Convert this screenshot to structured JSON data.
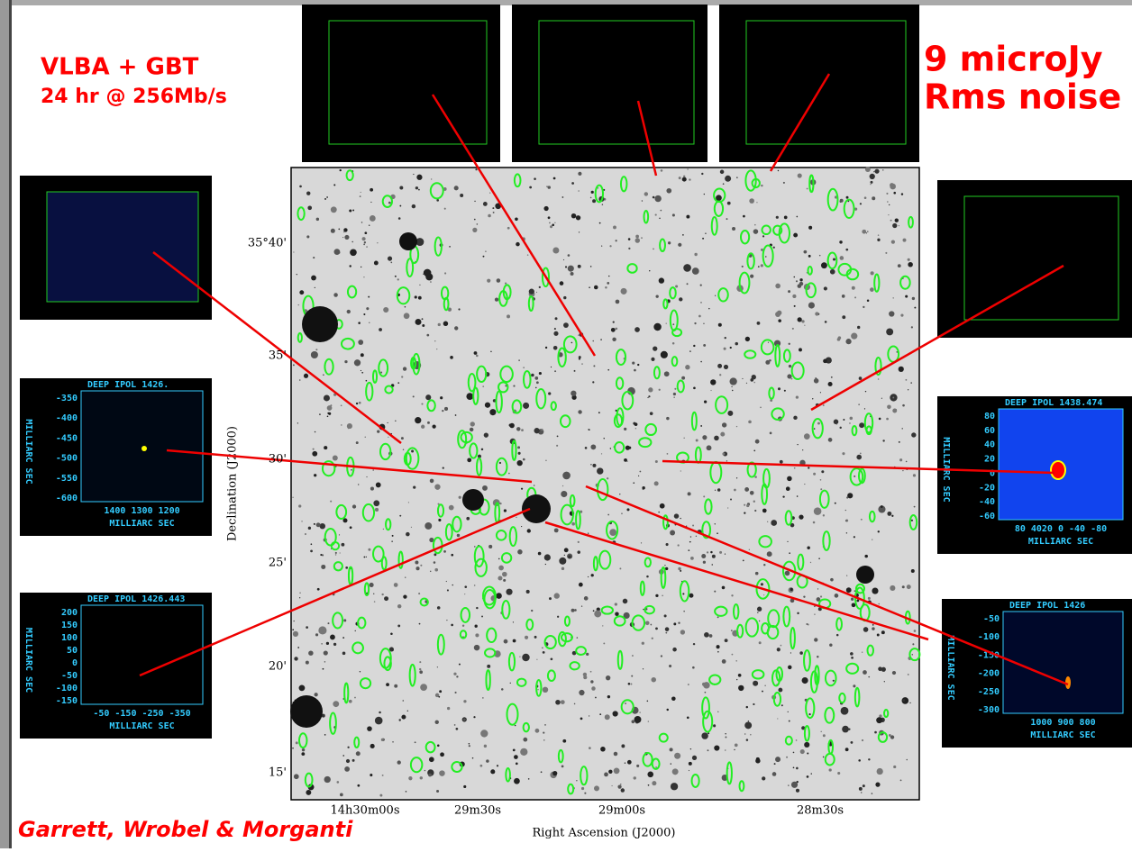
{
  "header": {
    "line1": "VLBA + GBT",
    "line2": "24 hr @ 256Mb/s",
    "noise1": "9 microJy",
    "noise2": "Rms noise"
  },
  "credit": "Garrett, Wrobel & Morganti",
  "main_image": {
    "y_label": "Declination (J2000)",
    "x_label": "Right Ascension (J2000)",
    "y_ticks": [
      "35°40'",
      "35'",
      "30'",
      "25'",
      "20'",
      "15'"
    ],
    "x_ticks": [
      "14h30m00s",
      "29m30s",
      "29m00s",
      "28m30s"
    ]
  },
  "insets": [
    {
      "title": "DEEP IPOL 1426.",
      "y_axis": "MILLIARC SEC",
      "y_ticks": [
        "-350",
        "-400",
        "-450",
        "-500",
        "-550",
        "-600"
      ],
      "x_ticks": "1400 1300 1200",
      "x_axis": "MILLIARC SEC"
    },
    {
      "title": "DEEP IPOL 1426.443",
      "y_axis": "MILLIARC SEC",
      "y_ticks": [
        "200",
        "150",
        "100",
        "50",
        "0",
        "-50",
        "-100",
        "-150"
      ],
      "x_ticks": "-50 -150 -250 -350",
      "x_axis": "MILLIARC SEC"
    },
    {
      "title": "DEEP IPOL 1438.474",
      "y_axis": "MILLIARC SEC",
      "y_ticks": [
        "80",
        "60",
        "40",
        "20",
        "0",
        "-20",
        "-40",
        "-60"
      ],
      "x_ticks": "80 4020 0 -40 -80",
      "x_axis": "MILLIARC SEC"
    },
    {
      "title": "DEEP IPOL 1426",
      "y_axis": "MILLIARC SEC",
      "y_ticks": [
        "-50",
        "-100",
        "-150",
        "-200",
        "-250",
        "-300"
      ],
      "x_ticks": "1000 900 800",
      "x_axis": "MILLIARC SEC"
    }
  ]
}
